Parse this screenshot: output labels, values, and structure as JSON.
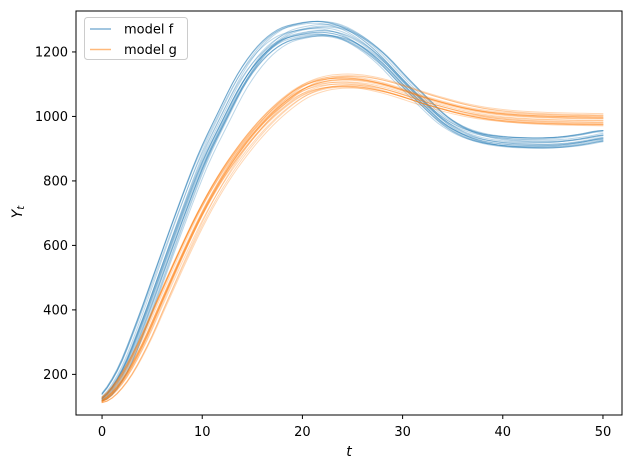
{
  "labels": {
    "ylabel_main": "Y",
    "ylabel_sub": "t"
  },
  "chart_data": {
    "type": "line",
    "title": "",
    "xlabel": "t",
    "ylabel": "Y_t",
    "grid": false,
    "legend_position": "upper left",
    "x_ticks": [
      0,
      10,
      20,
      30,
      40,
      50
    ],
    "y_ticks": [
      200,
      400,
      600,
      800,
      1000,
      1200
    ],
    "xlim": [
      -2.6,
      51.9
    ],
    "ylim": [
      74,
      1327
    ],
    "x": [
      0,
      2,
      4,
      6,
      8,
      10,
      12,
      14,
      16,
      18,
      20,
      22,
      24,
      26,
      28,
      30,
      32,
      34,
      36,
      38,
      40,
      42,
      44,
      46,
      48,
      50
    ],
    "series": [
      {
        "name": "model f",
        "color": "#1f77b4",
        "alpha": 0.3,
        "line_width": 1,
        "n_lines": 20,
        "values": [
          125,
          210,
          360,
          530,
          700,
          860,
          990,
          1110,
          1195,
          1245,
          1264,
          1270,
          1258,
          1225,
          1175,
          1110,
          1048,
          990,
          952,
          931,
          921,
          917,
          916,
          919,
          927,
          938
        ]
      },
      {
        "name": "model g",
        "color": "#ff7f0e",
        "alpha": 0.3,
        "line_width": 1,
        "n_lines": 20,
        "values": [
          118,
          180,
          290,
          430,
          570,
          700,
          810,
          900,
          975,
          1035,
          1080,
          1103,
          1110,
          1107,
          1095,
          1077,
          1056,
          1038,
          1022,
          1010,
          1002,
          997,
          994,
          992,
          991,
          990
        ]
      }
    ],
    "ensemble": {
      "time_jitter": 0.6,
      "scale_jitter": 0.022,
      "baseline": 100
    }
  },
  "legend": {
    "border_color": "#cccccc",
    "background": "#ffffff"
  }
}
